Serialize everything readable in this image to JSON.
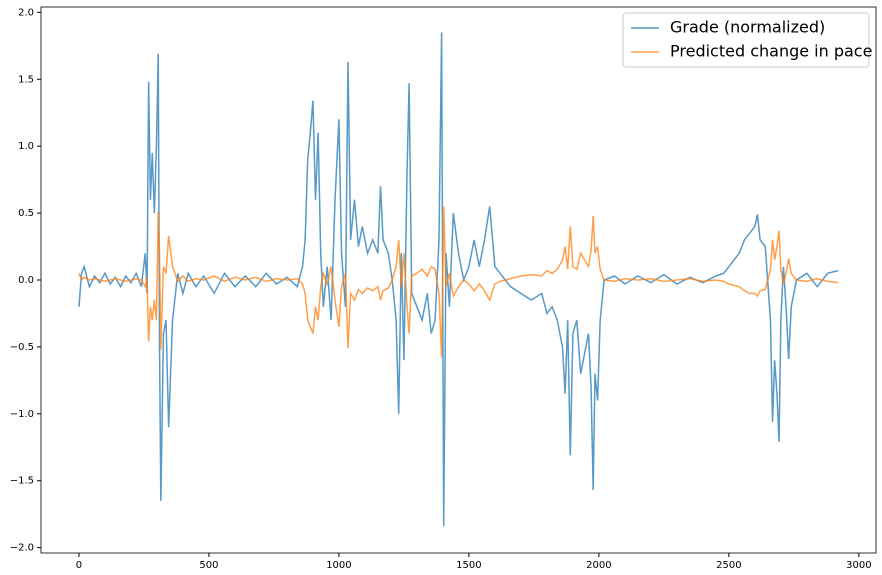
{
  "chart_data": {
    "type": "line",
    "x": [
      0,
      10,
      20,
      40,
      60,
      80,
      100,
      120,
      140,
      160,
      180,
      200,
      220,
      240,
      255,
      262,
      268,
      275,
      282,
      290,
      298,
      305,
      310,
      315,
      325,
      335,
      345,
      360,
      380,
      400,
      420,
      450,
      480,
      520,
      560,
      600,
      640,
      680,
      720,
      760,
      800,
      840,
      860,
      870,
      880,
      890,
      900,
      910,
      920,
      930,
      940,
      955,
      970,
      985,
      1000,
      1010,
      1025,
      1035,
      1045,
      1060,
      1075,
      1090,
      1110,
      1130,
      1150,
      1160,
      1170,
      1190,
      1205,
      1220,
      1230,
      1240,
      1250,
      1262,
      1270,
      1280,
      1300,
      1320,
      1340,
      1355,
      1370,
      1385,
      1395,
      1403,
      1412,
      1425,
      1440,
      1460,
      1480,
      1500,
      1520,
      1540,
      1560,
      1580,
      1600,
      1620,
      1660,
      1700,
      1740,
      1780,
      1800,
      1820,
      1840,
      1860,
      1870,
      1880,
      1890,
      1900,
      1915,
      1930,
      1945,
      1960,
      1970,
      1978,
      1985,
      1995,
      2005,
      2020,
      2060,
      2100,
      2150,
      2200,
      2250,
      2300,
      2350,
      2400,
      2450,
      2480,
      2500,
      2520,
      2540,
      2560,
      2580,
      2600,
      2610,
      2620,
      2640,
      2660,
      2668,
      2676,
      2685,
      2693,
      2700,
      2710,
      2720,
      2730,
      2740,
      2760,
      2800,
      2840,
      2880,
      2920
    ],
    "series": [
      {
        "name": "Grade (normalized)",
        "color": "#1f77b4",
        "values": [
          -0.2,
          0.05,
          0.1,
          -0.05,
          0.03,
          -0.02,
          0.05,
          -0.03,
          0.02,
          -0.05,
          0.03,
          -0.02,
          0.05,
          -0.05,
          0.2,
          -0.1,
          1.48,
          0.6,
          0.95,
          0.5,
          1.0,
          1.69,
          -0.5,
          -1.65,
          -0.4,
          -0.3,
          -1.1,
          -0.3,
          0.05,
          -0.1,
          0.05,
          -0.05,
          0.03,
          -0.1,
          0.05,
          -0.05,
          0.03,
          -0.05,
          0.05,
          -0.03,
          0.02,
          -0.05,
          0.1,
          0.3,
          0.9,
          1.1,
          1.34,
          0.6,
          1.1,
          0.2,
          -0.2,
          0.1,
          -0.3,
          0.6,
          1.2,
          0.2,
          -0.2,
          1.63,
          0.3,
          0.6,
          0.25,
          0.4,
          0.2,
          0.3,
          0.2,
          0.7,
          0.3,
          0.2,
          0.0,
          -0.3,
          -1.0,
          0.2,
          -0.6,
          0.8,
          1.47,
          -0.1,
          -0.2,
          -0.3,
          -0.1,
          -0.4,
          -0.3,
          0.3,
          1.85,
          -1.84,
          0.2,
          -0.2,
          0.5,
          0.2,
          0.0,
          0.1,
          0.3,
          0.1,
          0.3,
          0.55,
          0.1,
          0.05,
          -0.05,
          -0.1,
          -0.15,
          -0.1,
          -0.25,
          -0.2,
          -0.3,
          -0.5,
          -0.85,
          -0.3,
          -1.31,
          -0.4,
          -0.3,
          -0.7,
          -0.55,
          -0.4,
          -0.8,
          -1.57,
          -0.7,
          -0.9,
          -0.3,
          0.0,
          0.03,
          -0.03,
          0.03,
          -0.02,
          0.04,
          -0.03,
          0.02,
          -0.02,
          0.03,
          0.05,
          0.1,
          0.15,
          0.2,
          0.3,
          0.35,
          0.4,
          0.49,
          0.3,
          0.25,
          -0.3,
          -1.06,
          -0.6,
          -0.85,
          -1.21,
          -0.3,
          0.1,
          -0.2,
          -0.59,
          -0.2,
          0.0,
          0.05,
          -0.05,
          0.05,
          0.07
        ]
      },
      {
        "name": "Predicted change in pace",
        "color": "#ff7f0e",
        "values": [
          0.05,
          0.0,
          0.02,
          0.0,
          0.01,
          0.0,
          -0.01,
          0.0,
          0.01,
          0.0,
          -0.01,
          0.0,
          0.01,
          0.0,
          -0.05,
          0.02,
          -0.46,
          -0.2,
          -0.3,
          -0.15,
          -0.3,
          0.51,
          0.2,
          -0.52,
          0.1,
          0.05,
          0.33,
          0.1,
          -0.01,
          0.03,
          -0.01,
          0.01,
          0.0,
          0.03,
          -0.01,
          0.02,
          0.0,
          0.02,
          -0.01,
          0.01,
          0.0,
          0.01,
          -0.03,
          -0.1,
          -0.3,
          -0.35,
          -0.4,
          -0.2,
          -0.3,
          -0.05,
          0.05,
          -0.03,
          0.1,
          -0.15,
          -0.35,
          -0.05,
          0.05,
          -0.51,
          -0.1,
          -0.15,
          -0.07,
          -0.1,
          -0.06,
          -0.08,
          -0.05,
          -0.15,
          -0.08,
          -0.06,
          0.0,
          0.1,
          0.3,
          -0.05,
          0.2,
          -0.2,
          -0.4,
          0.03,
          0.05,
          0.08,
          0.03,
          0.1,
          0.08,
          -0.1,
          -0.58,
          0.55,
          -0.05,
          0.05,
          -0.12,
          -0.05,
          0.0,
          -0.03,
          -0.08,
          -0.03,
          -0.08,
          -0.15,
          -0.03,
          -0.01,
          0.01,
          0.03,
          0.04,
          0.03,
          0.07,
          0.05,
          0.08,
          0.15,
          0.25,
          0.08,
          0.4,
          0.1,
          0.08,
          0.2,
          0.15,
          0.1,
          0.22,
          0.48,
          0.2,
          0.25,
          0.08,
          0.0,
          -0.01,
          0.01,
          0.0,
          0.01,
          -0.01,
          0.0,
          0.01,
          -0.01,
          0.0,
          -0.01,
          -0.03,
          -0.04,
          -0.05,
          -0.08,
          -0.1,
          -0.1,
          -0.12,
          -0.08,
          -0.07,
          0.08,
          0.3,
          0.15,
          0.25,
          0.37,
          0.08,
          -0.03,
          0.05,
          0.16,
          0.05,
          0.0,
          -0.01,
          0.01,
          -0.01,
          -0.02
        ]
      }
    ],
    "xlim": [
      -146,
      3066
    ],
    "ylim": [
      -2.04,
      2.04
    ],
    "xticks": [
      0,
      500,
      1000,
      1500,
      2000,
      2500,
      3000
    ],
    "yticks": [
      {
        "value": -2,
        "label": "−2.0"
      },
      {
        "value": -1.5,
        "label": "−1.5"
      },
      {
        "value": -1,
        "label": "−1.0"
      },
      {
        "value": -0.5,
        "label": "−0.5"
      },
      {
        "value": 0,
        "label": "0.0"
      },
      {
        "value": 0.5,
        "label": "0.5"
      },
      {
        "value": 1,
        "label": "1.0"
      },
      {
        "value": 1.5,
        "label": "1.5"
      },
      {
        "value": 2,
        "label": "2.0"
      }
    ],
    "legend": "upper right"
  }
}
